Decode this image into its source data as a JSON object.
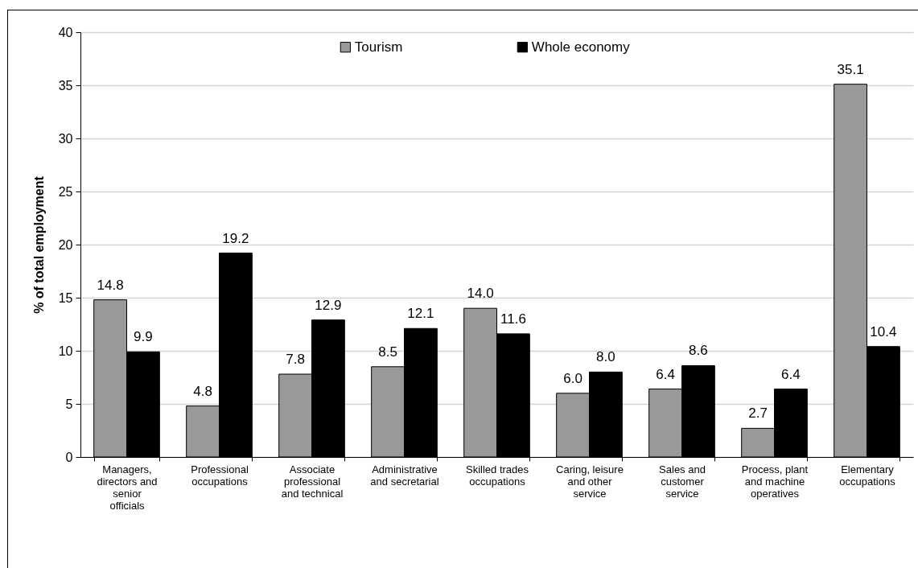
{
  "chart_data": {
    "type": "bar",
    "ylabel": "% of total employment",
    "categories": [
      "Managers, directors and senior officials",
      "Professional occupations",
      "Associate professional and technical",
      "Administrative and secretarial",
      "Skilled trades occupations",
      "Caring, leisure and other service",
      "Sales and customer service",
      "Process, plant and machine operatives",
      "Elementary occupations"
    ],
    "series": [
      {
        "name": "Tourism",
        "color": "#999999",
        "values": [
          14.8,
          4.8,
          7.8,
          8.5,
          14.0,
          6.0,
          6.4,
          2.7,
          35.1
        ],
        "value_labels": [
          "14.8",
          "4.8",
          "7.8",
          "8.5",
          "14.0",
          "6.0",
          "6.4",
          "2.7",
          "35.1"
        ]
      },
      {
        "name": "Whole economy",
        "color": "#000000",
        "values": [
          9.9,
          19.2,
          12.9,
          12.1,
          11.6,
          8.0,
          8.6,
          6.4,
          10.4
        ],
        "value_labels": [
          "9.9",
          "19.2",
          "12.9",
          "12.1",
          "11.6",
          "8.0",
          "8.6",
          "6.4",
          "10.4"
        ]
      }
    ],
    "ylim": [
      0,
      40
    ],
    "yticks": [
      0,
      5,
      10,
      15,
      20,
      25,
      30,
      35,
      40
    ],
    "grid": "y",
    "legend": "top"
  }
}
